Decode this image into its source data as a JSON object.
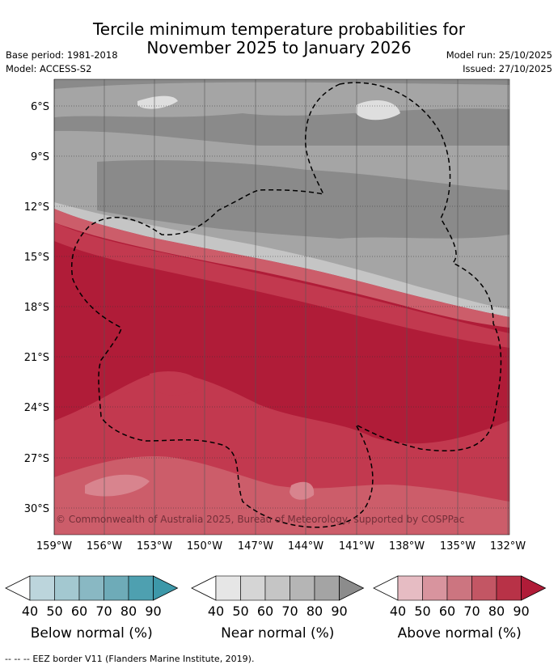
{
  "title": {
    "line1": "Tercile minimum temperature probabilities for",
    "line2": "November 2025 to January 2026"
  },
  "meta": {
    "base_period": "Base period: 1981-2018",
    "model": "Model: ACCESS-S2",
    "model_run": "Model run: 25/10/2025",
    "issued": "Issued: 27/10/2025"
  },
  "map": {
    "lat_ticks": [
      "6°S",
      "9°S",
      "12°S",
      "15°S",
      "18°S",
      "21°S",
      "24°S",
      "27°S",
      "30°S"
    ],
    "lon_ticks": [
      "159°W",
      "156°W",
      "153°W",
      "150°W",
      "147°W",
      "144°W",
      "141°W",
      "138°W",
      "135°W",
      "132°W"
    ],
    "copyright": "© Commonwealth of Australia 2025, Bureau of Meteorology, supported by COSPPac"
  },
  "colorbars": [
    {
      "title": "Below normal (%)",
      "ticks": [
        "40",
        "50",
        "60",
        "70",
        "80",
        "90"
      ],
      "colors": [
        "#bcd5dc",
        "#a3c8d0",
        "#89b8c3",
        "#6eabb8",
        "#4ea0b0",
        "#3d98a9"
      ]
    },
    {
      "title": "Near normal (%)",
      "ticks": [
        "40",
        "50",
        "60",
        "70",
        "80",
        "90"
      ],
      "colors": [
        "#e6e6e6",
        "#d5d5d5",
        "#c5c5c5",
        "#b5b5b5",
        "#a4a4a4",
        "#8c8c8c"
      ]
    },
    {
      "title": "Above normal (%)",
      "ticks": [
        "40",
        "50",
        "60",
        "70",
        "80",
        "90"
      ],
      "colors": [
        "#e6bcc3",
        "#d8949e",
        "#cc7580",
        "#c35664",
        "#b83247",
        "#b01c38"
      ]
    }
  ],
  "footer": {
    "legend_dash": "-- -- --",
    "legend_text": "EEZ border V11 (Flanders Marine Institute, 2019)."
  },
  "colors": {
    "above90": "#b01c38",
    "above80": "#c2394f",
    "above70": "#cc5d6a",
    "above60": "#d8848e",
    "near70": "#8a8a8a",
    "near60": "#a5a5a5",
    "near50": "#c5c5c5",
    "near40": "#dedede"
  }
}
